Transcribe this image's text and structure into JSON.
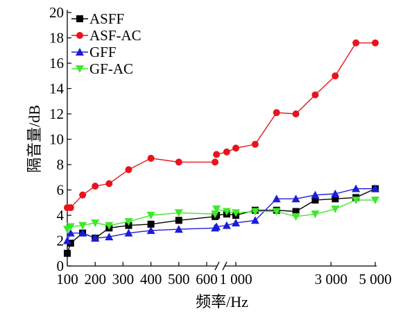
{
  "chart_data": {
    "type": "line",
    "xlabel": "频率/Hz",
    "ylabel": "隔音量/dB",
    "ylim": [
      0,
      20
    ],
    "yticks": [
      0,
      2,
      4,
      6,
      8,
      10,
      12,
      14,
      16,
      18,
      20
    ],
    "x_axis_break": "between 630 Hz and 800 Hz",
    "xtick_labels": [
      {
        "value": 100,
        "label": "100"
      },
      {
        "value": 200,
        "label": "200"
      },
      {
        "value": 300,
        "label": "300"
      },
      {
        "value": 400,
        "label": "400"
      },
      {
        "value": 500,
        "label": "500"
      },
      {
        "value": 600,
        "label": "600"
      },
      {
        "value": 1000,
        "label": "1 000"
      },
      {
        "value": 3000,
        "label": "3 000"
      },
      {
        "value": 5000,
        "label": "5 000"
      }
    ],
    "legend_position": "top-left",
    "grid": false,
    "series": [
      {
        "name": "ASFF",
        "color": "#000000",
        "marker": "square",
        "segments": [
          {
            "x": [
              100,
              112,
              155,
              200,
              250,
              320,
              400,
              500,
              630
            ],
            "y": [
              1.0,
              1.8,
              2.6,
              2.2,
              3.0,
              3.2,
              3.3,
              3.6,
              3.9
            ]
          },
          {
            "x": [
              800,
              900,
              1000,
              1250,
              1600,
              2000,
              2500,
              3150,
              4000,
              5000
            ],
            "y": [
              4.0,
              4.1,
              4.0,
              4.4,
              4.4,
              4.3,
              5.2,
              5.3,
              5.4,
              6.1
            ]
          }
        ]
      },
      {
        "name": "ASF-AC",
        "color": "#e8141c",
        "marker": "circle",
        "segments": [
          {
            "x": [
              100,
              112,
              155,
              200,
              250,
              320,
              400,
              500,
              630
            ],
            "y": [
              4.6,
              4.6,
              5.6,
              6.3,
              6.5,
              7.6,
              8.5,
              8.2,
              8.2
            ]
          },
          {
            "x": [
              800,
              900,
              1000,
              1250,
              1600,
              2000,
              2500,
              3150,
              4000,
              5000
            ],
            "y": [
              8.8,
              9.0,
              9.3,
              9.6,
              12.1,
              12.0,
              13.5,
              15.0,
              17.6,
              17.6
            ]
          }
        ]
      },
      {
        "name": "GFF",
        "color": "#1c1cd8",
        "marker": "triangle-up",
        "segments": [
          {
            "x": [
              100,
              112,
              155,
              200,
              250,
              320,
              400,
              500,
              630
            ],
            "y": [
              2.0,
              2.6,
              2.6,
              2.2,
              2.3,
              2.6,
              2.8,
              2.9,
              3.0
            ]
          },
          {
            "x": [
              800,
              900,
              1000,
              1250,
              1600,
              2000,
              2500,
              3150,
              4000,
              5000
            ],
            "y": [
              3.1,
              3.2,
              3.4,
              3.6,
              5.3,
              5.3,
              5.6,
              5.7,
              6.1,
              6.1
            ]
          }
        ]
      },
      {
        "name": "GF-AC",
        "color": "#3ee82a",
        "marker": "triangle-down",
        "segments": [
          {
            "x": [
              100,
              112,
              155,
              200,
              250,
              320,
              400,
              500,
              630
            ],
            "y": [
              2.9,
              3.1,
              3.2,
              3.4,
              3.2,
              3.5,
              4.0,
              4.2,
              4.1
            ]
          },
          {
            "x": [
              800,
              900,
              1000,
              1250,
              1600,
              2000,
              2500,
              3150,
              4000,
              5000
            ],
            "y": [
              4.5,
              4.3,
              4.2,
              4.3,
              4.3,
              3.9,
              4.1,
              4.5,
              5.2,
              5.2
            ]
          }
        ]
      }
    ]
  }
}
